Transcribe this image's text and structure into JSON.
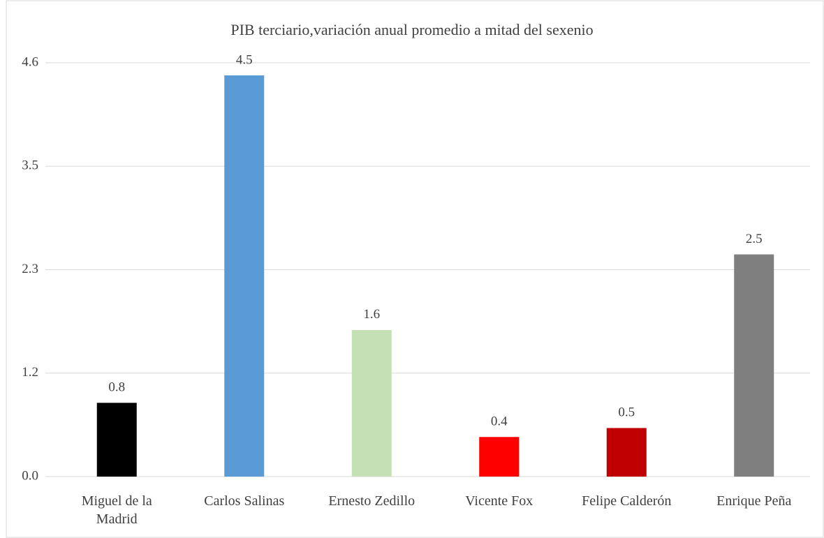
{
  "chart_data": {
    "type": "bar",
    "title": "PIB terciario,variación anual promedio a mitad del sexenio",
    "categories": [
      "Miguel de la Madrid",
      "Carlos Salinas",
      "Ernesto Zedillo",
      "Vicente Fox",
      "Felipe Calderón",
      "Enrique Peña"
    ],
    "values": [
      0.82,
      4.46,
      1.63,
      0.44,
      0.54,
      2.47
    ],
    "value_labels": [
      "0.8",
      "4.5",
      "1.6",
      "0.4",
      "0.5",
      "2.5"
    ],
    "colors": [
      "#000000",
      "#5b9bd5",
      "#c5e0b4",
      "#ff0000",
      "#c00000",
      "#7f7f7f"
    ],
    "ylim": [
      0,
      4.6
    ],
    "yticks": [
      {
        "value": 0,
        "label": "0.0"
      },
      {
        "value": 1.15,
        "label": "1.2"
      },
      2.3,
      {
        "value": 3.45,
        "label": "3.5"
      },
      4.6
    ],
    "grid": true
  }
}
